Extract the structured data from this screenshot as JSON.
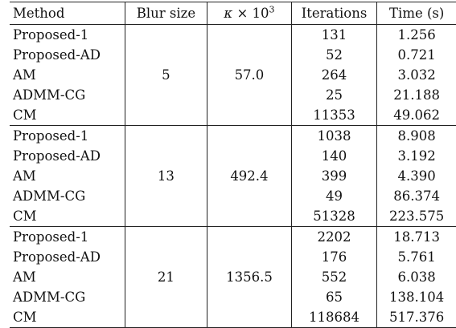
{
  "headers": {
    "method": "Method",
    "blur": "Blur size",
    "kappa_symbol": "κ",
    "kappa_times": " × 10",
    "kappa_exp": "3",
    "iterations": "Iterations",
    "time": "Time (s)"
  },
  "groups": [
    {
      "blur": "5",
      "kappa": "57.0",
      "rows": [
        {
          "method": "Proposed-1",
          "iter": "131",
          "time": "1.256"
        },
        {
          "method": "Proposed-AD",
          "iter": "52",
          "time": "0.721"
        },
        {
          "method": "AM",
          "iter": "264",
          "time": "3.032"
        },
        {
          "method": "ADMM-CG",
          "iter": "25",
          "time": "21.188"
        },
        {
          "method": "CM",
          "iter": "11353",
          "time": "49.062"
        }
      ]
    },
    {
      "blur": "13",
      "kappa": "492.4",
      "rows": [
        {
          "method": "Proposed-1",
          "iter": "1038",
          "time": "8.908"
        },
        {
          "method": "Proposed-AD",
          "iter": "140",
          "time": "3.192"
        },
        {
          "method": "AM",
          "iter": "399",
          "time": "4.390"
        },
        {
          "method": "ADMM-CG",
          "iter": "49",
          "time": "86.374"
        },
        {
          "method": "CM",
          "iter": "51328",
          "time": "223.575"
        }
      ]
    },
    {
      "blur": "21",
      "kappa": "1356.5",
      "rows": [
        {
          "method": "Proposed-1",
          "iter": "2202",
          "time": "18.713"
        },
        {
          "method": "Proposed-AD",
          "iter": "176",
          "time": "5.761"
        },
        {
          "method": "AM",
          "iter": "552",
          "time": "6.038"
        },
        {
          "method": "ADMM-CG",
          "iter": "65",
          "time": "138.104"
        },
        {
          "method": "CM",
          "iter": "118684",
          "time": "517.376"
        }
      ]
    }
  ]
}
